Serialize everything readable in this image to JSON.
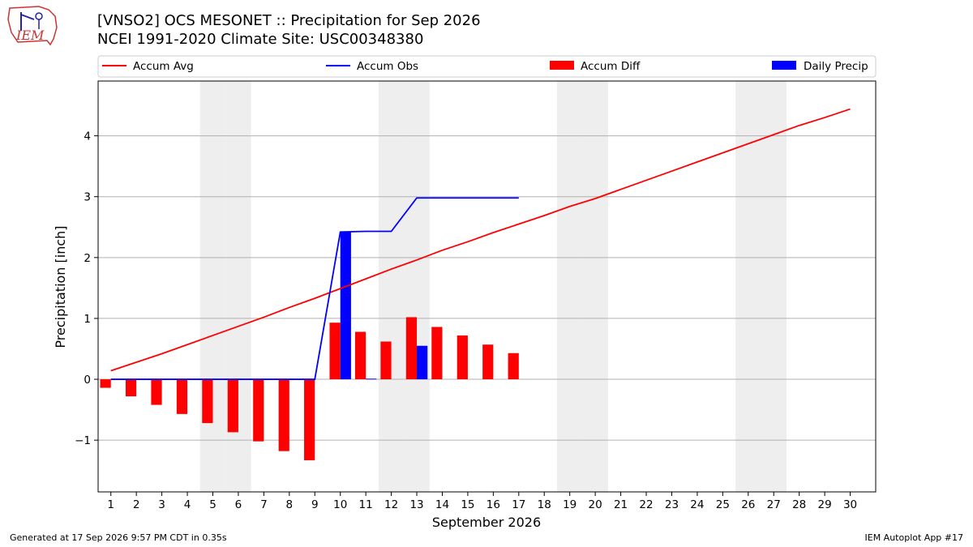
{
  "title_line1": "[VNSO2] OCS MESONET :: Precipitation for Sep 2026",
  "title_line2": "NCEI 1991-2020 Climate Site: USC00348380",
  "logo_text": "IEM",
  "footer_left": "Generated at 17 Sep 2026 9:57 PM CDT in 0.35s",
  "footer_right": "IEM Autoplot App #17",
  "colors": {
    "avg": "#ff0000",
    "obs": "#0000ff",
    "diff": "#ff0000",
    "daily": "#0000ff",
    "weekend": "#eeeeee",
    "grid": "#b0b0b0"
  },
  "chart_data": {
    "type": "bar",
    "xlabel": "September 2026",
    "ylabel": "Precipitation [inch]",
    "xlim": [
      0.5,
      31
    ],
    "ylim": [
      -1.85,
      4.9
    ],
    "yticks": [
      -1,
      0,
      1,
      2,
      3,
      4
    ],
    "ytick_labels": [
      "−1",
      "0",
      "1",
      "2",
      "3",
      "4"
    ],
    "x": [
      1,
      2,
      3,
      4,
      5,
      6,
      7,
      8,
      9,
      10,
      11,
      12,
      13,
      14,
      15,
      16,
      17,
      18,
      19,
      20,
      21,
      22,
      23,
      24,
      25,
      26,
      27,
      28,
      29,
      30
    ],
    "weekend_days": [
      5,
      6,
      12,
      13,
      19,
      20,
      26,
      27
    ],
    "grid": "y",
    "legend": {
      "placement": "top",
      "entries": [
        {
          "label": "Accum Avg",
          "kind": "line",
          "color": "#ff0000"
        },
        {
          "label": "Accum Obs",
          "kind": "line",
          "color": "#0000ff"
        },
        {
          "label": "Accum Diff",
          "kind": "bar",
          "color": "#ff0000"
        },
        {
          "label": "Daily Precip",
          "kind": "bar",
          "color": "#0000ff"
        }
      ]
    },
    "series": [
      {
        "name": "Accum Avg",
        "kind": "line",
        "x": [
          1,
          2,
          3,
          4,
          5,
          6,
          7,
          8,
          9,
          10,
          11,
          12,
          13,
          14,
          15,
          16,
          17,
          18,
          19,
          20,
          21,
          22,
          23,
          24,
          25,
          26,
          27,
          28,
          29,
          30
        ],
        "values": [
          0.14,
          0.28,
          0.42,
          0.57,
          0.72,
          0.87,
          1.02,
          1.18,
          1.33,
          1.49,
          1.65,
          1.81,
          1.96,
          2.12,
          2.26,
          2.41,
          2.55,
          2.69,
          2.84,
          2.97,
          3.12,
          3.27,
          3.42,
          3.57,
          3.72,
          3.87,
          4.02,
          4.17,
          4.3,
          4.44
        ]
      },
      {
        "name": "Accum Obs",
        "kind": "line",
        "x": [
          1,
          2,
          3,
          4,
          5,
          6,
          7,
          8,
          9,
          10,
          11,
          12,
          13,
          14,
          15,
          16,
          17
        ],
        "values": [
          0,
          0,
          0,
          0,
          0,
          0,
          0,
          0,
          0,
          2.42,
          2.43,
          2.43,
          2.98,
          2.98,
          2.98,
          2.98,
          2.98
        ]
      },
      {
        "name": "Accum Diff",
        "kind": "bar",
        "x": [
          1,
          2,
          3,
          4,
          5,
          6,
          7,
          8,
          9,
          10,
          11,
          12,
          13,
          14,
          15,
          16,
          17
        ],
        "values": [
          -0.14,
          -0.28,
          -0.42,
          -0.57,
          -0.72,
          -0.87,
          -1.02,
          -1.18,
          -1.33,
          0.93,
          0.78,
          0.62,
          1.02,
          0.86,
          0.72,
          0.57,
          0.43
        ]
      },
      {
        "name": "Daily Precip",
        "kind": "bar",
        "x": [
          10,
          11,
          13
        ],
        "values": [
          2.42,
          0.01,
          0.55
        ]
      }
    ]
  }
}
